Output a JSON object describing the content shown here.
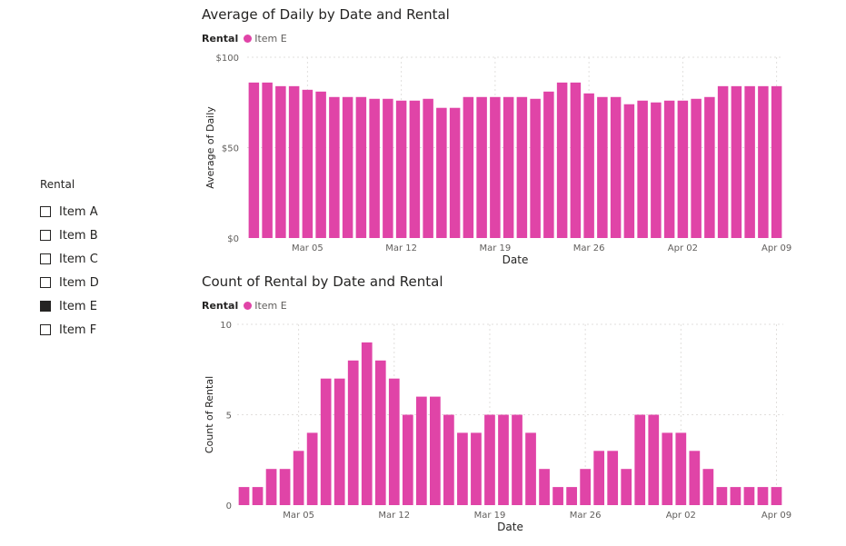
{
  "slicer": {
    "title": "Rental",
    "items": [
      {
        "label": "Item A",
        "checked": false
      },
      {
        "label": "Item B",
        "checked": false
      },
      {
        "label": "Item C",
        "checked": false
      },
      {
        "label": "Item D",
        "checked": false
      },
      {
        "label": "Item E",
        "checked": true
      },
      {
        "label": "Item F",
        "checked": false
      }
    ]
  },
  "colors": {
    "bar": "#e044a7",
    "text": "#252423",
    "axis_text": "#605e5c",
    "grid": "#e1dfdd"
  },
  "chart_data": [
    {
      "type": "bar",
      "title": "Average of Daily by Date and Rental",
      "legend_title": "Rental",
      "legend_label": "Item E",
      "xlabel": "Date",
      "ylabel": "Average of Daily",
      "ylim": [
        0,
        100
      ],
      "yticks": [
        0,
        50,
        100
      ],
      "ytick_labels": [
        "$0",
        "$50",
        "$100"
      ],
      "xtick_labels": [
        "Mar 05",
        "Mar 12",
        "Mar 19",
        "Mar 26",
        "Apr 02",
        "Apr 09"
      ],
      "xtick_indices": [
        4,
        11,
        18,
        25,
        32,
        39
      ],
      "values": [
        86,
        86,
        84,
        84,
        82,
        81,
        78,
        78,
        78,
        77,
        77,
        76,
        76,
        77,
        72,
        72,
        78,
        78,
        78,
        78,
        78,
        77,
        81,
        86,
        86,
        80,
        78,
        78,
        74,
        76,
        75,
        76,
        76,
        77,
        78,
        84,
        84,
        84,
        84,
        84
      ]
    },
    {
      "type": "bar",
      "title": "Count of Rental by Date and Rental",
      "legend_title": "Rental",
      "legend_label": "Item E",
      "xlabel": "Date",
      "ylabel": "Count of Rental",
      "ylim": [
        0,
        10
      ],
      "yticks": [
        0,
        5,
        10
      ],
      "ytick_labels": [
        "0",
        "5",
        "10"
      ],
      "xtick_labels": [
        "Mar 05",
        "Mar 12",
        "Mar 19",
        "Mar 26",
        "Apr 02",
        "Apr 09"
      ],
      "xtick_indices": [
        4,
        11,
        18,
        25,
        32,
        39
      ],
      "values": [
        1,
        1,
        2,
        2,
        3,
        4,
        7,
        7,
        8,
        9,
        8,
        7,
        5,
        6,
        6,
        5,
        4,
        4,
        5,
        5,
        5,
        4,
        2,
        1,
        1,
        2,
        3,
        3,
        2,
        5,
        5,
        4,
        4,
        3,
        2,
        1,
        1,
        1,
        1,
        1
      ]
    }
  ]
}
